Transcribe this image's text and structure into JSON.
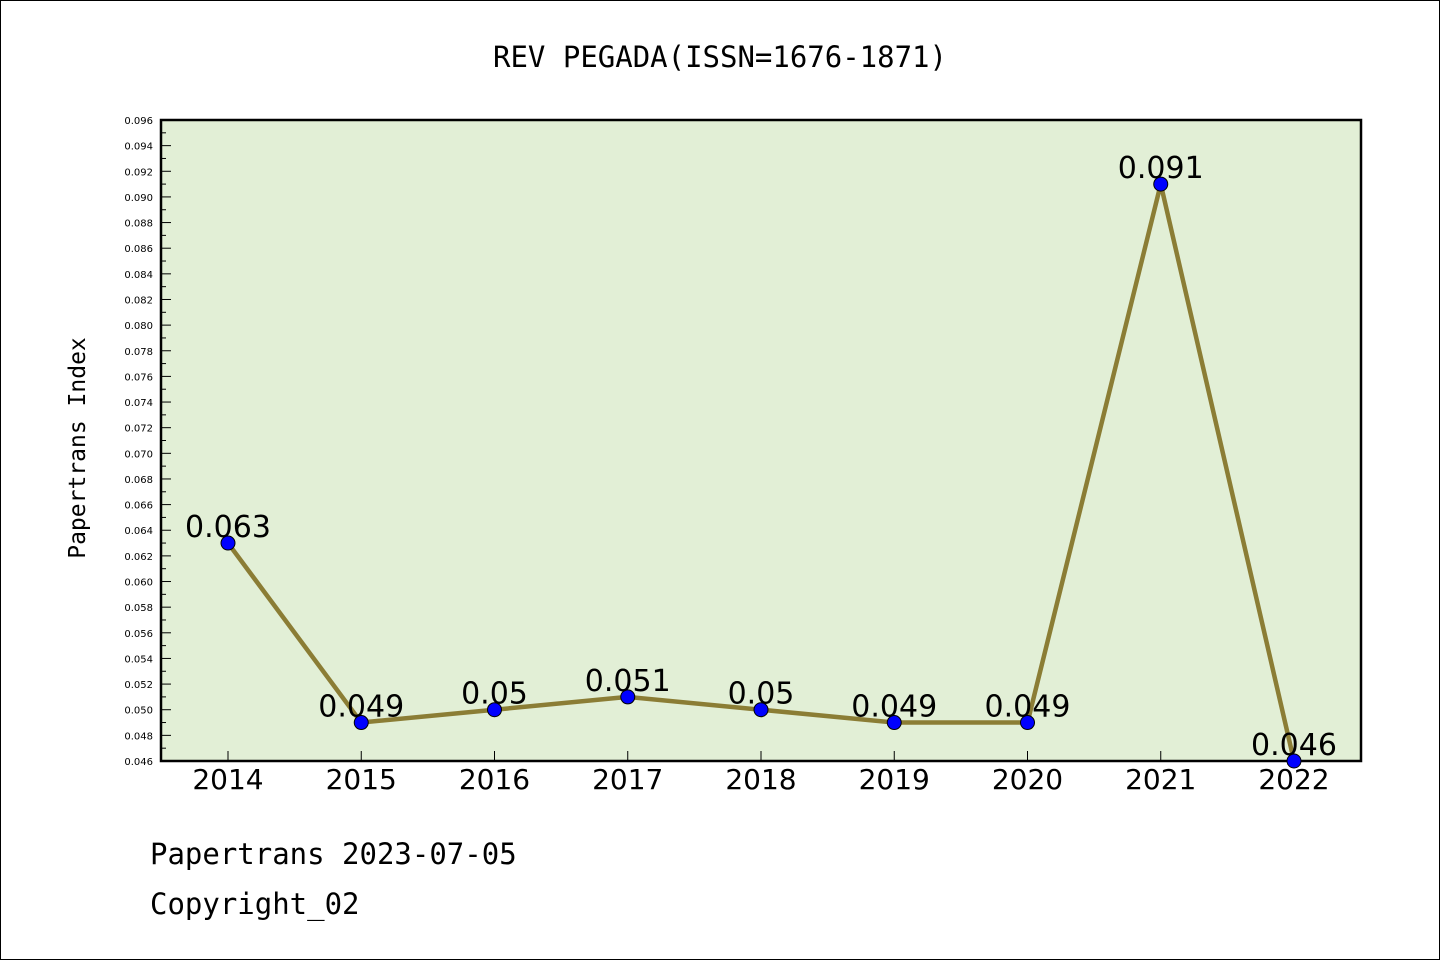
{
  "chart_data": {
    "type": "line",
    "title": "REV PEGADA(ISSN=1676-1871)",
    "ylabel": "Papertrans Index",
    "xlabel": "",
    "categories": [
      "2014",
      "2015",
      "2016",
      "2017",
      "2018",
      "2019",
      "2020",
      "2021",
      "2022"
    ],
    "values": [
      0.063,
      0.049,
      0.05,
      0.051,
      0.05,
      0.049,
      0.049,
      0.091,
      0.046
    ],
    "data_labels": [
      "0.063",
      "0.049",
      "0.05",
      "0.051",
      "0.05",
      "0.049",
      "0.049",
      "0.091",
      "0.046"
    ],
    "ylim": [
      0.046,
      0.096
    ],
    "yticks": [
      "0.046",
      "0.048",
      "0.050",
      "0.052",
      "0.054",
      "0.056",
      "0.058",
      "0.060",
      "0.062",
      "0.064",
      "0.066",
      "0.068",
      "0.070",
      "0.072",
      "0.074",
      "0.076",
      "0.078",
      "0.080",
      "0.082",
      "0.084",
      "0.086",
      "0.088",
      "0.090",
      "0.092",
      "0.094",
      "0.096"
    ],
    "grid": false,
    "legend": "none",
    "colors": {
      "plot_background": "#e2efd6",
      "line": "#8b7d35",
      "marker": "#0000ff"
    }
  },
  "footer": {
    "line1": "Papertrans 2023-07-05",
    "line2": "Copyright_02"
  }
}
